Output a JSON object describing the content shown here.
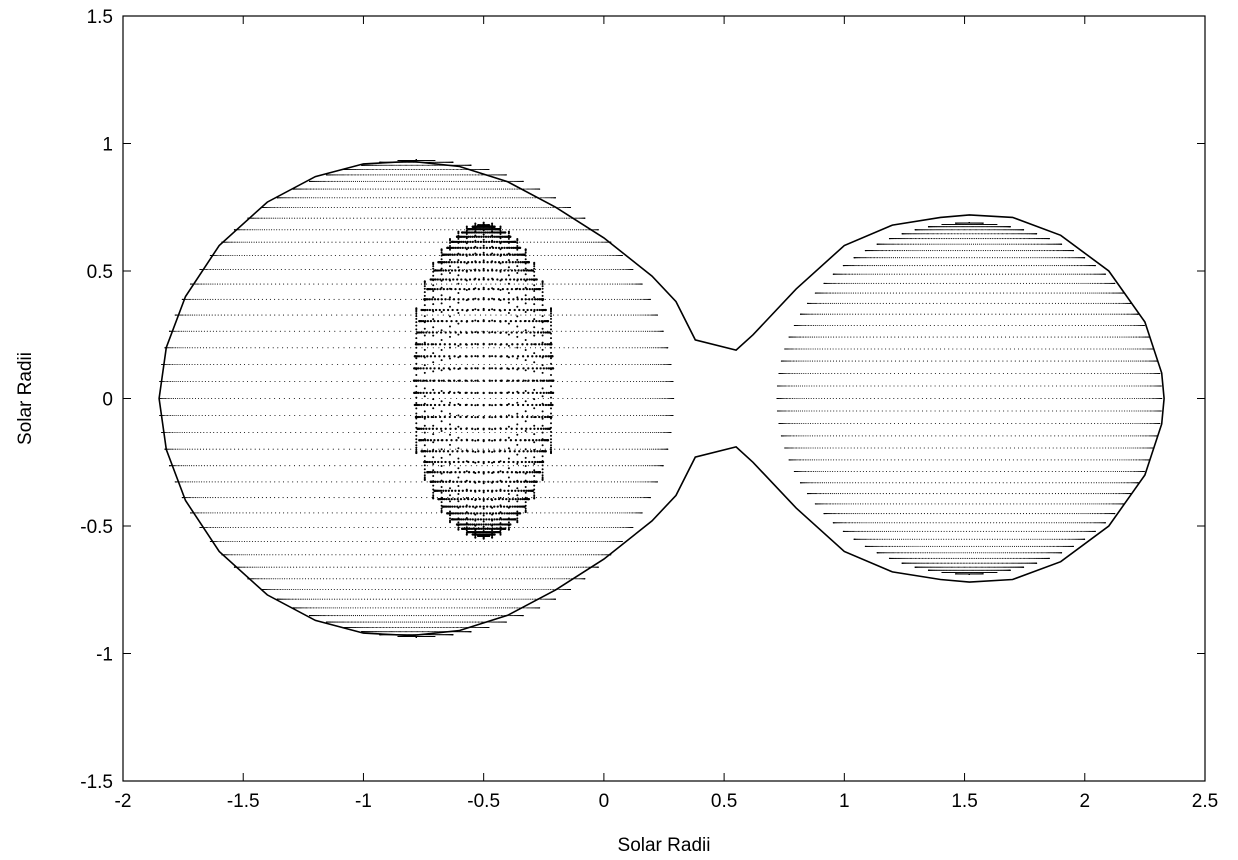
{
  "chart_data": {
    "type": "scatter",
    "title": "",
    "xlabel": "Solar Radii",
    "ylabel": "Solar Radii",
    "xlim": [
      -2,
      2.5
    ],
    "ylim": [
      -1.5,
      1.5
    ],
    "x_ticks": [
      "-2",
      "-1.5",
      "-1",
      "-0.5",
      "0",
      "0.5",
      "1",
      "1.5",
      "2",
      "2.5"
    ],
    "y_ticks": [
      "-1.5",
      "-1",
      "-0.5",
      "0",
      "0.5",
      "1",
      "1.5"
    ],
    "grid": false,
    "legend": "none",
    "colors": {
      "ink": "#000000",
      "background": "#ffffff"
    },
    "series": [
      {
        "kind": "outline",
        "points": [
          [
            -1.85,
            0
          ],
          [
            -1.82,
            0.2
          ],
          [
            -1.74,
            0.4
          ],
          [
            -1.6,
            0.6
          ],
          [
            -1.4,
            0.77
          ],
          [
            -1.2,
            0.87
          ],
          [
            -1.0,
            0.92
          ],
          [
            -0.8,
            0.93
          ],
          [
            -0.6,
            0.91
          ],
          [
            -0.4,
            0.85
          ],
          [
            -0.2,
            0.75
          ],
          [
            0.0,
            0.63
          ],
          [
            0.2,
            0.48
          ],
          [
            0.3,
            0.38
          ],
          [
            0.38,
            0.23
          ],
          [
            0.55,
            0.19
          ],
          [
            0.62,
            0.25
          ],
          [
            0.8,
            0.43
          ],
          [
            1.0,
            0.6
          ],
          [
            1.2,
            0.68
          ],
          [
            1.4,
            0.71
          ],
          [
            1.52,
            0.72
          ],
          [
            1.7,
            0.71
          ],
          [
            1.9,
            0.64
          ],
          [
            2.1,
            0.5
          ],
          [
            2.25,
            0.3
          ],
          [
            2.32,
            0.1
          ],
          [
            2.33,
            0
          ],
          [
            2.32,
            -0.1
          ],
          [
            2.25,
            -0.3
          ],
          [
            2.1,
            -0.5
          ],
          [
            1.9,
            -0.64
          ],
          [
            1.7,
            -0.71
          ],
          [
            1.52,
            -0.72
          ],
          [
            1.4,
            -0.71
          ],
          [
            1.2,
            -0.68
          ],
          [
            1.0,
            -0.6
          ],
          [
            0.8,
            -0.43
          ],
          [
            0.62,
            -0.25
          ],
          [
            0.55,
            -0.19
          ],
          [
            0.38,
            -0.23
          ],
          [
            0.3,
            -0.38
          ],
          [
            0.2,
            -0.48
          ],
          [
            0.0,
            -0.63
          ],
          [
            -0.2,
            -0.75
          ],
          [
            -0.4,
            -0.85
          ],
          [
            -0.6,
            -0.91
          ],
          [
            -0.8,
            -0.93
          ],
          [
            -1.0,
            -0.92
          ],
          [
            -1.2,
            -0.87
          ],
          [
            -1.4,
            -0.77
          ],
          [
            -1.6,
            -0.6
          ],
          [
            -1.74,
            -0.4
          ],
          [
            -1.82,
            -0.2
          ],
          [
            -1.85,
            0
          ]
        ]
      },
      {
        "kind": "primary-surface-grid",
        "center": [
          -0.78,
          0
        ],
        "radius_x": 1.07,
        "radius_y": 0.95,
        "neck_x": 0.56,
        "neck_half_height": 0.19
      },
      {
        "kind": "spot-grid",
        "center": [
          -0.5,
          0.07
        ],
        "radius_x": 0.63,
        "radius_y": 0.62
      },
      {
        "kind": "secondary-surface-grid",
        "center": [
          1.52,
          0
        ],
        "radius_x": 0.8,
        "radius_y": 0.7,
        "neck_x": 0.56,
        "neck_half_height": 0.19
      }
    ]
  }
}
